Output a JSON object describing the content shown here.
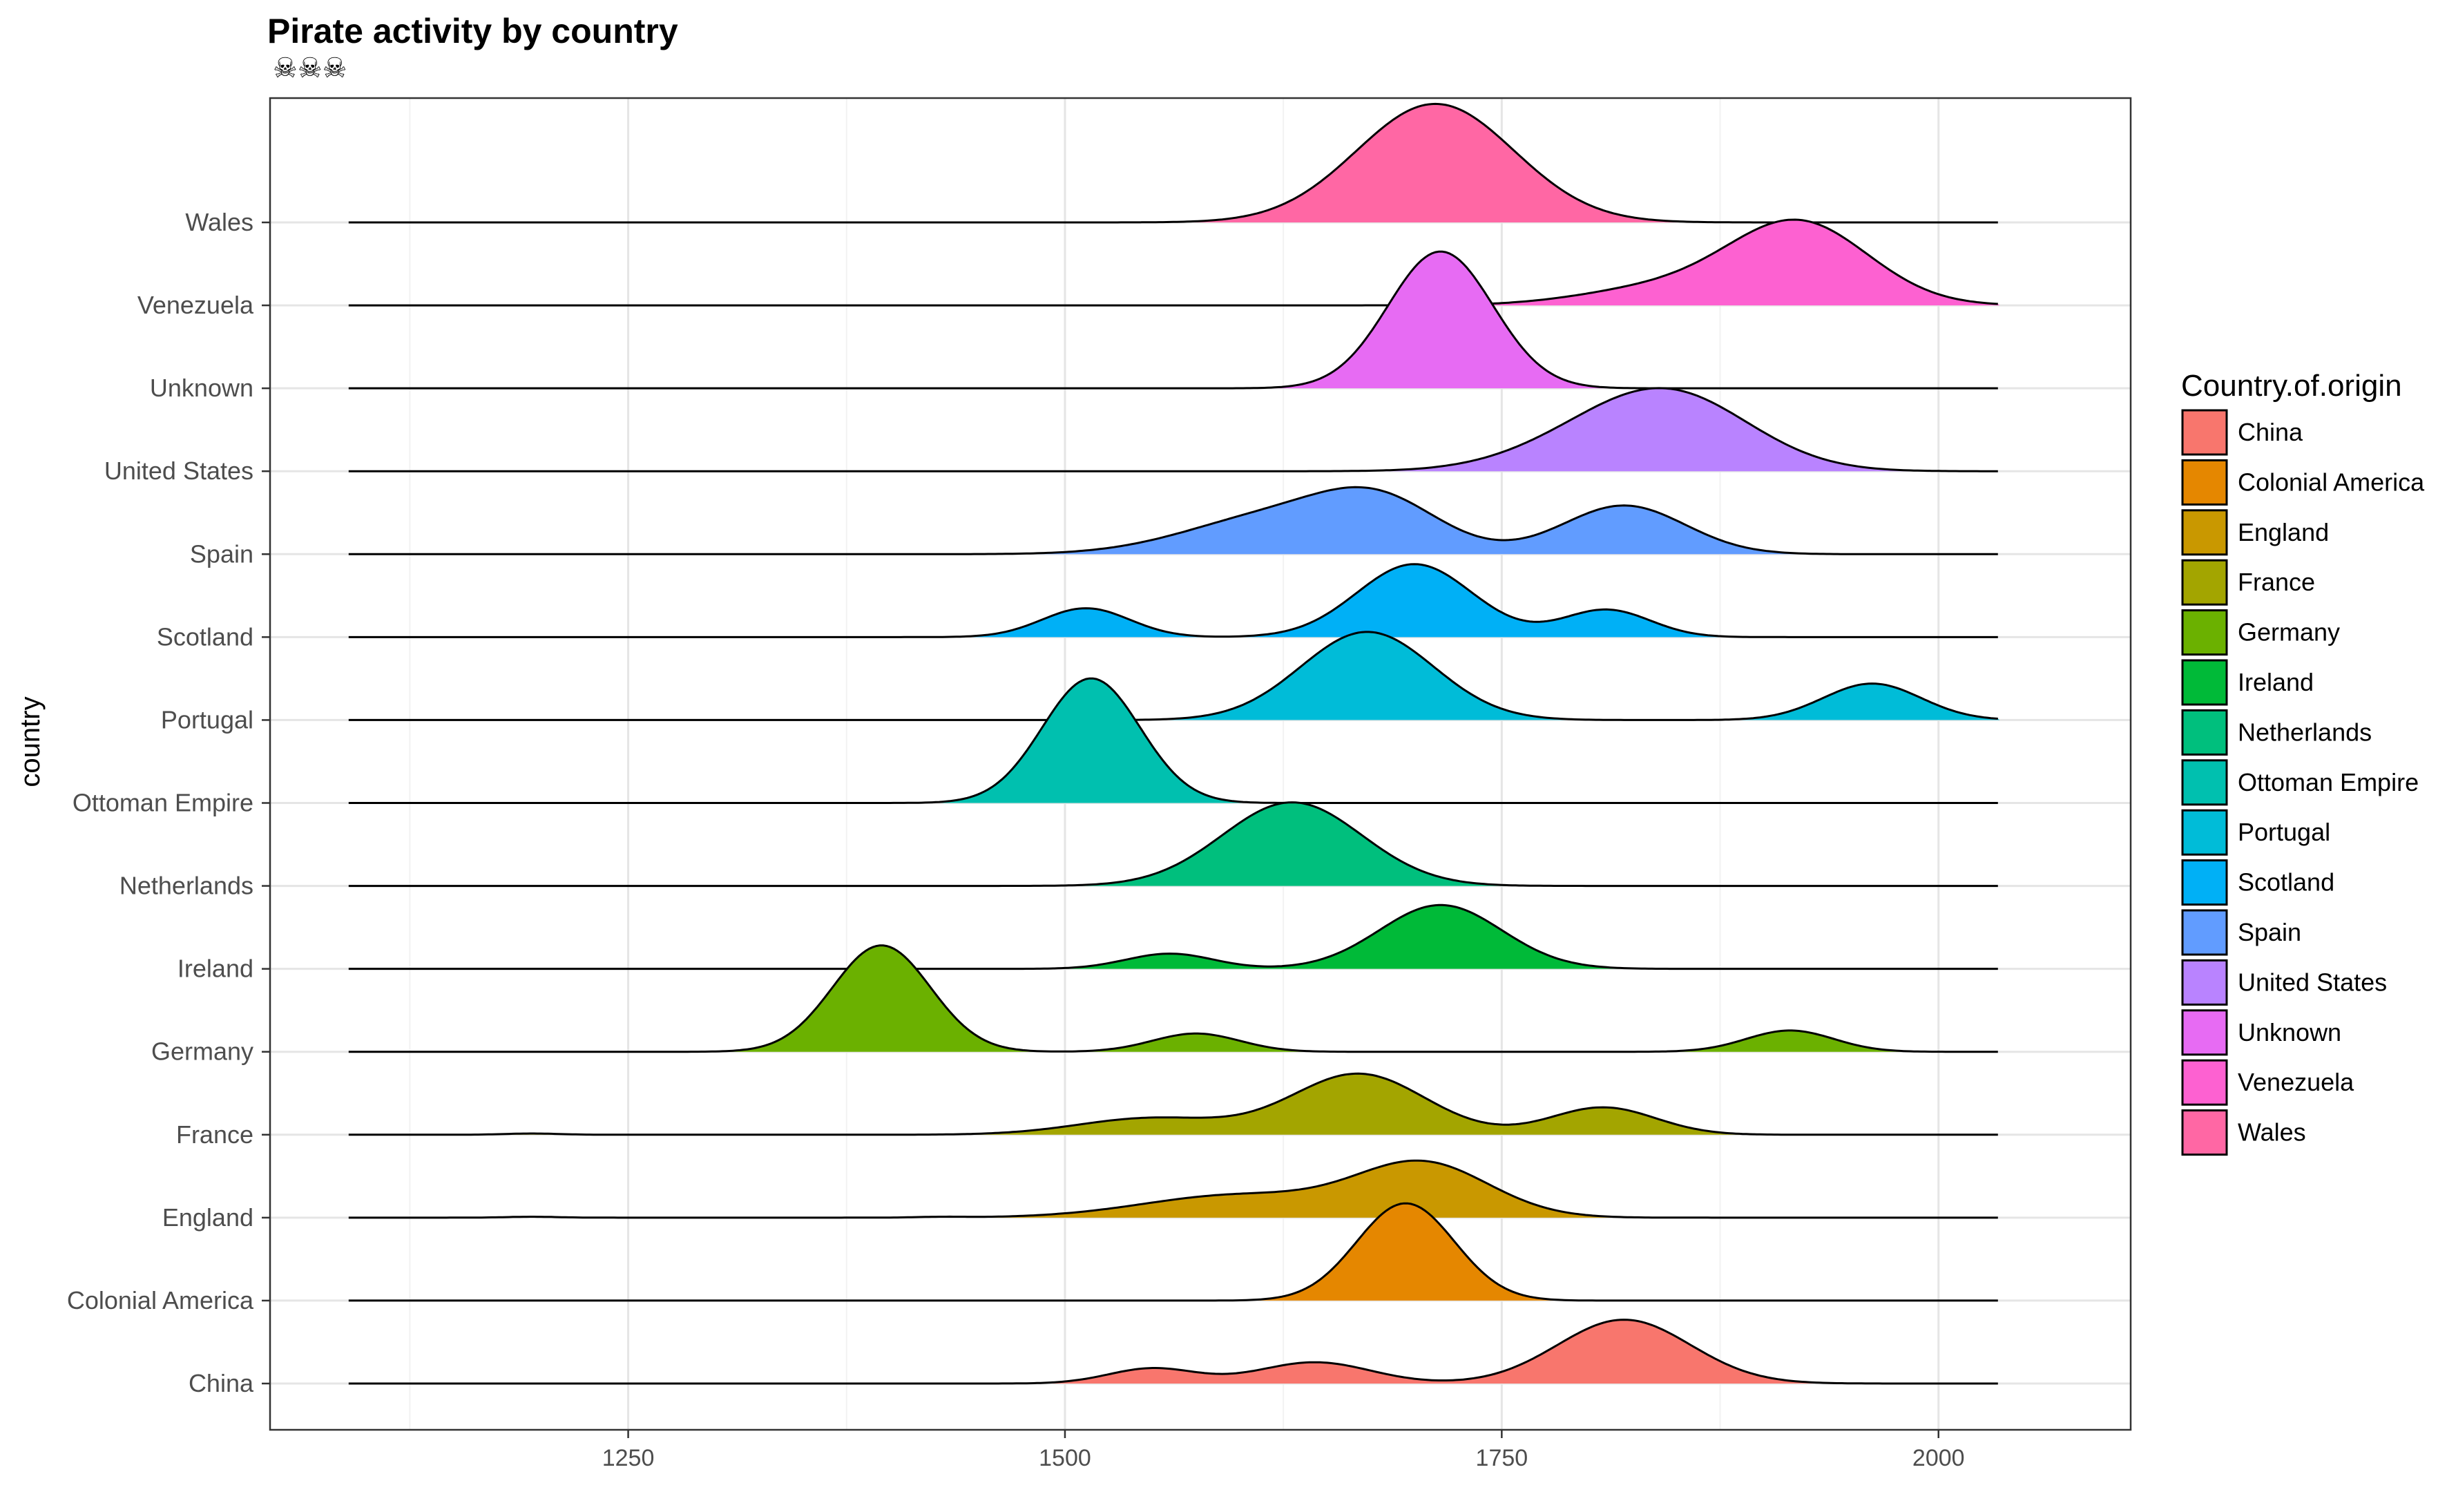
{
  "chart_data": {
    "type": "ridgeline",
    "title": "Pirate activity by country",
    "subtitle": "☠☠☠",
    "xlabel": "",
    "ylabel": "country",
    "xlim": [
      1045,
      2110
    ],
    "x_ticks": [
      1250,
      1500,
      1750,
      2000
    ],
    "x_minor_ticks": [
      1125,
      1375,
      1625,
      1875
    ],
    "grid": true,
    "legend": {
      "title": "Country.of.origin",
      "position": "right"
    },
    "categories": [
      "China",
      "Colonial America",
      "England",
      "France",
      "Germany",
      "Ireland",
      "Netherlands",
      "Ottoman Empire",
      "Portugal",
      "Scotland",
      "Spain",
      "United States",
      "Unknown",
      "Venezuela",
      "Wales"
    ],
    "colors": [
      "#F8766D",
      "#E58700",
      "#C99800",
      "#A3A500",
      "#6BB100",
      "#00BA38",
      "#00BF7D",
      "#00C0AF",
      "#00BCD8",
      "#00B0F6",
      "#619CFF",
      "#B983FF",
      "#E76BF3",
      "#FD61D1",
      "#FF67A4"
    ],
    "series": [
      {
        "name": "China",
        "range": [
          1090,
          2035
        ],
        "peaks": [
          [
            1550,
            1.0,
            25
          ],
          [
            1643,
            1.4,
            32
          ],
          [
            1820,
            4.2,
            38
          ]
        ]
      },
      {
        "name": "Colonial America",
        "range": [
          1090,
          2035
        ],
        "peaks": [
          [
            1695,
            6.4,
            28
          ]
        ]
      },
      {
        "name": "England",
        "range": [
          1090,
          2035
        ],
        "peaks": [
          [
            1195,
            0.06,
            15
          ],
          [
            1430,
            0.05,
            15
          ],
          [
            1600,
            1.5,
            55
          ],
          [
            1705,
            3.5,
            38
          ]
        ]
      },
      {
        "name": "France",
        "range": [
          1090,
          2035
        ],
        "peaks": [
          [
            1195,
            0.08,
            15
          ],
          [
            1550,
            1.1,
            42
          ],
          [
            1668,
            4.0,
            38
          ],
          [
            1808,
            1.8,
            30
          ]
        ]
      },
      {
        "name": "Germany",
        "range": [
          1090,
          2035
        ],
        "peaks": [
          [
            1395,
            7.0,
            28
          ],
          [
            1575,
            1.2,
            25
          ],
          [
            1915,
            1.4,
            25
          ]
        ]
      },
      {
        "name": "Ireland",
        "range": [
          1090,
          2035
        ],
        "peaks": [
          [
            1560,
            1.0,
            25
          ],
          [
            1715,
            4.2,
            35
          ]
        ]
      },
      {
        "name": "Netherlands",
        "range": [
          1090,
          2035
        ],
        "peaks": [
          [
            1630,
            5.5,
            40
          ]
        ]
      },
      {
        "name": "Ottoman Empire",
        "range": [
          1090,
          2035
        ],
        "peaks": [
          [
            1515,
            8.2,
            28
          ]
        ]
      },
      {
        "name": "Portugal",
        "range": [
          1090,
          2035
        ],
        "peaks": [
          [
            1673,
            5.8,
            38
          ],
          [
            1962,
            2.4,
            28
          ]
        ]
      },
      {
        "name": "Scotland",
        "range": [
          1090,
          2035
        ],
        "peaks": [
          [
            1512,
            1.9,
            25
          ],
          [
            1700,
            4.8,
            33
          ],
          [
            1810,
            1.8,
            25
          ]
        ]
      },
      {
        "name": "Spain",
        "range": [
          1090,
          2035
        ],
        "peaks": [
          [
            1620,
            2.5,
            50
          ],
          [
            1680,
            3.0,
            35
          ],
          [
            1820,
            3.2,
            35
          ]
        ]
      },
      {
        "name": "United States",
        "range": [
          1090,
          2035
        ],
        "peaks": [
          [
            1800,
            1.6,
            45
          ],
          [
            1850,
            4.5,
            45
          ]
        ]
      },
      {
        "name": "Unknown",
        "range": [
          1090,
          2035
        ],
        "peaks": [
          [
            1715,
            9.0,
            30
          ]
        ]
      },
      {
        "name": "Venezuela",
        "range": [
          1090,
          2035
        ],
        "peaks": [
          [
            1840,
            1.1,
            45
          ],
          [
            1920,
            5.4,
            40
          ]
        ]
      },
      {
        "name": "Wales",
        "range": [
          1090,
          2035
        ],
        "peaks": [
          [
            1712,
            7.8,
            45
          ]
        ]
      }
    ]
  }
}
